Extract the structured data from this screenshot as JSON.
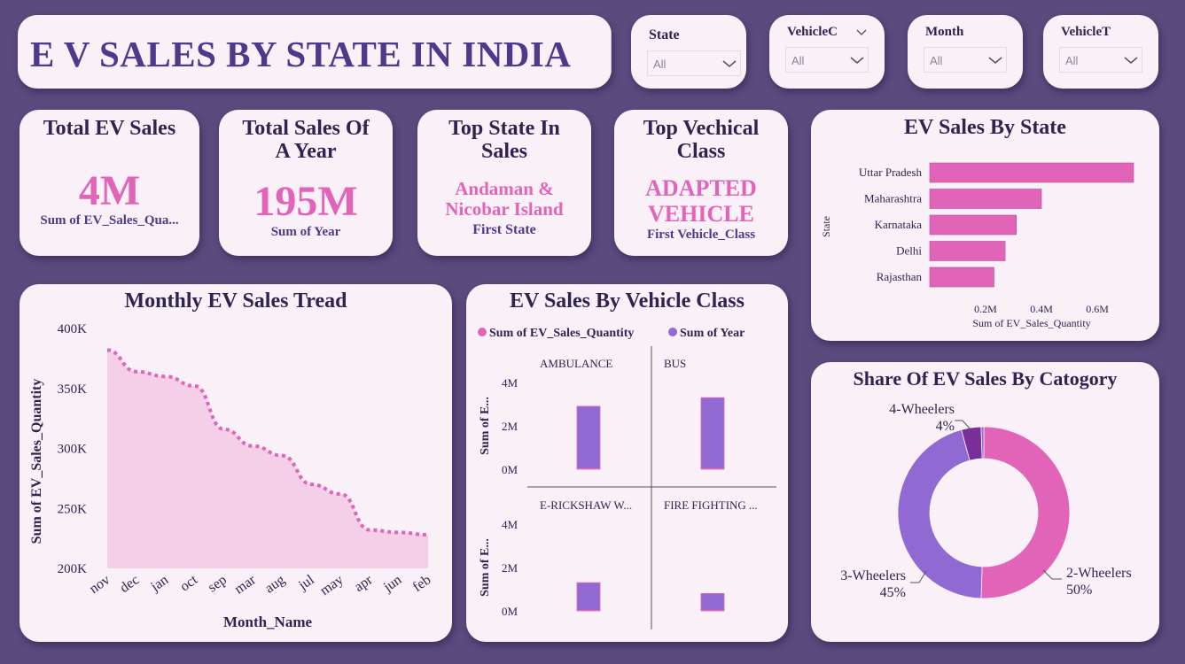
{
  "title": "E V SALES BY STATE IN INDIA",
  "filters": [
    {
      "label": "State",
      "value": "All"
    },
    {
      "label": "VehicleC",
      "value": "All"
    },
    {
      "label": "Month",
      "value": "All"
    },
    {
      "label": "VehicleT",
      "value": "All"
    }
  ],
  "kpis": {
    "total_ev": {
      "title": "Total EV Sales",
      "value": "4M",
      "sub": "Sum of EV_Sales_Qua..."
    },
    "year": {
      "title_line1": "Total Sales Of",
      "title_line2": "A Year",
      "value": "195M",
      "sub": "Sum of Year"
    },
    "top_state": {
      "title_line1": "Top State In",
      "title_line2": "Sales",
      "value_line1": "Andaman &",
      "value_line2": "Nicobar Island",
      "sub": "First State"
    },
    "top_class": {
      "title_line1": "Top Vechical",
      "title_line2": "Class",
      "value_line1": "ADAPTED",
      "value_line2": "VEHICLE",
      "sub": "First Vehicle_Class"
    }
  },
  "colors": {
    "pink": "#e264b8",
    "purple": "#9169d3",
    "dark_purple": "#7a2e9a",
    "title": "#2e2452",
    "background": "#5a4a7e",
    "card": "#f9f1f7"
  },
  "chart_data": [
    {
      "id": "state",
      "type": "bar",
      "orientation": "horizontal",
      "title": "EV Sales By State",
      "xlabel": "Sum of EV_Sales_Quantity",
      "ylabel": "State",
      "categories": [
        "Uttar Pradesh",
        "Maharashtra",
        "Karnataka",
        "Delhi",
        "Rajasthan"
      ],
      "values": [
        0.73,
        0.4,
        0.31,
        0.27,
        0.23
      ],
      "x_ticks": [
        "0.2M",
        "0.4M",
        "0.6M"
      ],
      "xlim": [
        0,
        0.73
      ]
    },
    {
      "id": "monthly",
      "type": "area",
      "title": "Monthly EV Sales Tread",
      "xlabel": "Month_Name",
      "ylabel": "Sum of EV_Sales_Quantity",
      "x": [
        "nov",
        "dec",
        "jan",
        "oct",
        "sep",
        "mar",
        "aug",
        "jul",
        "may",
        "apr",
        "jun",
        "feb"
      ],
      "values": [
        382000,
        364000,
        360000,
        352000,
        316000,
        302000,
        294000,
        270000,
        262000,
        232000,
        230000,
        228000
      ],
      "y_ticks": [
        "400K",
        "350K",
        "300K",
        "250K",
        "200K"
      ],
      "ylim": [
        200000,
        400000
      ]
    },
    {
      "id": "vehicle_class",
      "type": "bar",
      "title": "EV Sales By Vehicle Class",
      "legend": [
        "Sum of EV_Sales_Quantity",
        "Sum of Year"
      ],
      "ylabel": "Sum of E...",
      "y_ticks": [
        "4M",
        "2M",
        "0M"
      ],
      "ylim": [
        0,
        4
      ],
      "panels": [
        {
          "label": "AMBULANCE",
          "sales": 0.05,
          "year": 2.9
        },
        {
          "label": "BUS",
          "sales": 0.05,
          "year": 3.3
        },
        {
          "label": "E-RICKSHAW W...",
          "sales": 0.05,
          "year": 1.3
        },
        {
          "label": "FIRE FIGHTING ...",
          "sales": 0.05,
          "year": 0.8
        }
      ]
    },
    {
      "id": "share",
      "type": "pie",
      "title": "Share Of EV Sales By Catogory",
      "slices": [
        {
          "label": "2-Wheelers",
          "pct_label": "50%",
          "value": 50.5
        },
        {
          "label": "3-Wheelers",
          "pct_label": "45%",
          "value": 45.3
        },
        {
          "label": "4-Wheelers",
          "pct_label": "4%",
          "value": 3.7
        },
        {
          "label": "",
          "pct_label": "",
          "value": 0.5
        }
      ]
    }
  ]
}
